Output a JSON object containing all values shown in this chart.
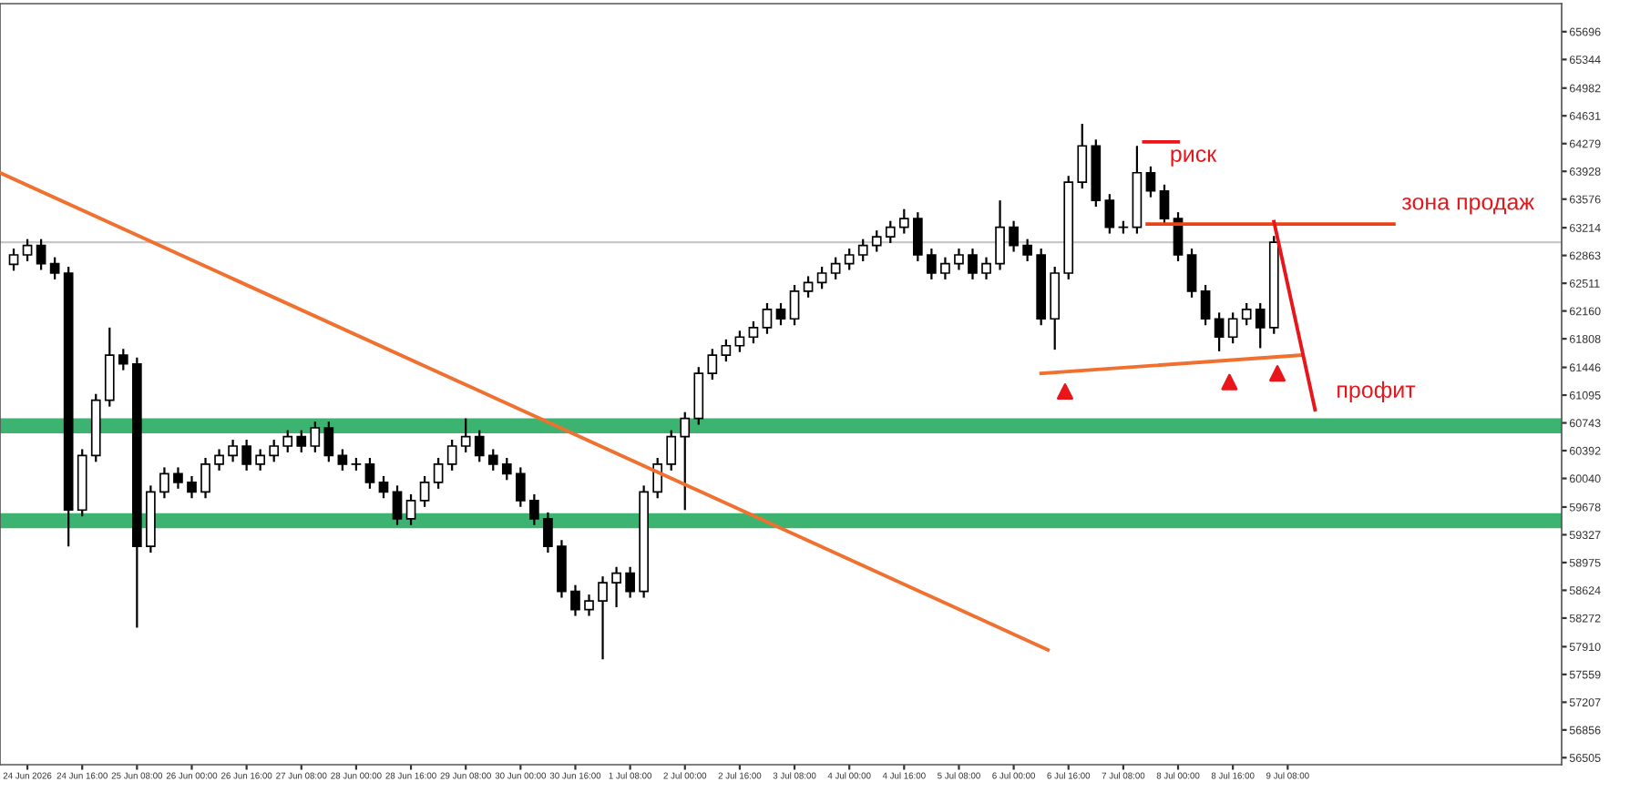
{
  "chart_data": {
    "type": "candlestick",
    "x": [
      "2026-06-23T20:00",
      "2026-06-24T00:00",
      "2026-06-24T04:00",
      "2026-06-24T08:00",
      "2026-06-24T12:00",
      "2026-06-24T16:00",
      "2026-06-24T20:00",
      "2026-06-25T00:00",
      "2026-06-25T04:00",
      "2026-06-25T08:00",
      "2026-06-25T12:00",
      "2026-06-25T16:00",
      "2026-06-25T20:00",
      "2026-06-26T00:00",
      "2026-06-26T04:00",
      "2026-06-26T08:00",
      "2026-06-26T12:00",
      "2026-06-26T16:00",
      "2026-06-26T20:00",
      "2026-06-27T00:00",
      "2026-06-27T04:00",
      "2026-06-27T08:00",
      "2026-06-27T12:00",
      "2026-06-27T16:00",
      "2026-06-27T20:00",
      "2026-06-28T00:00",
      "2026-06-28T04:00",
      "2026-06-28T08:00",
      "2026-06-28T12:00",
      "2026-06-28T16:00",
      "2026-06-28T20:00",
      "2026-06-29T00:00",
      "2026-06-29T04:00",
      "2026-06-29T08:00",
      "2026-06-29T12:00",
      "2026-06-29T16:00",
      "2026-06-29T20:00",
      "2026-06-30T00:00",
      "2026-06-30T04:00",
      "2026-06-30T08:00",
      "2026-06-30T12:00",
      "2026-06-30T16:00",
      "2026-06-30T20:00",
      "2026-07-01T00:00",
      "2026-07-01T04:00",
      "2026-07-01T08:00",
      "2026-07-01T12:00",
      "2026-07-01T16:00",
      "2026-07-01T20:00",
      "2026-07-02T00:00",
      "2026-07-02T04:00",
      "2026-07-02T08:00",
      "2026-07-02T12:00",
      "2026-07-02T16:00",
      "2026-07-02T20:00",
      "2026-07-03T00:00",
      "2026-07-03T04:00",
      "2026-07-03T08:00",
      "2026-07-03T12:00",
      "2026-07-03T16:00",
      "2026-07-03T20:00",
      "2026-07-04T00:00",
      "2026-07-04T04:00",
      "2026-07-04T08:00",
      "2026-07-04T12:00",
      "2026-07-04T16:00",
      "2026-07-04T20:00",
      "2026-07-05T00:00",
      "2026-07-05T04:00",
      "2026-07-05T08:00",
      "2026-07-05T12:00",
      "2026-07-05T16:00",
      "2026-07-05T20:00",
      "2026-07-06T00:00",
      "2026-07-06T04:00",
      "2026-07-06T08:00",
      "2026-07-06T12:00",
      "2026-07-06T16:00",
      "2026-07-06T20:00",
      "2026-07-07T00:00",
      "2026-07-07T04:00",
      "2026-07-07T08:00",
      "2026-07-07T12:00",
      "2026-07-07T16:00",
      "2026-07-07T20:00",
      "2026-07-08T00:00",
      "2026-07-08T04:00",
      "2026-07-08T08:00",
      "2026-07-08T12:00",
      "2026-07-08T16:00",
      "2026-07-08T20:00",
      "2026-07-09T00:00",
      "2026-07-09T04:00"
    ],
    "ohlc": [
      [
        62750,
        62950,
        62670,
        62870
      ],
      [
        62870,
        63070,
        62790,
        62990
      ],
      [
        62990,
        63070,
        62680,
        62760
      ],
      [
        62760,
        62840,
        62560,
        62640
      ],
      [
        62640,
        62720,
        59180,
        59640
      ],
      [
        59640,
        60410,
        59560,
        60330
      ],
      [
        60330,
        61110,
        60250,
        61030
      ],
      [
        61030,
        61950,
        60950,
        61600
      ],
      [
        61600,
        61680,
        61410,
        61490
      ],
      [
        61490,
        61570,
        58150,
        59180
      ],
      [
        59180,
        59950,
        59100,
        59870
      ],
      [
        59870,
        60180,
        59790,
        60100
      ],
      [
        60100,
        60180,
        59910,
        59990
      ],
      [
        59990,
        60070,
        59790,
        59870
      ],
      [
        59870,
        60300,
        59790,
        60220
      ],
      [
        60220,
        60410,
        60140,
        60330
      ],
      [
        60330,
        60530,
        60250,
        60450
      ],
      [
        60450,
        60530,
        60140,
        60220
      ],
      [
        60220,
        60410,
        60140,
        60330
      ],
      [
        60330,
        60530,
        60250,
        60450
      ],
      [
        60450,
        60650,
        60370,
        60570
      ],
      [
        60570,
        60650,
        60370,
        60450
      ],
      [
        60450,
        60760,
        60370,
        60680
      ],
      [
        60680,
        60760,
        60250,
        60330
      ],
      [
        60330,
        60410,
        60140,
        60220
      ],
      [
        60220,
        60300,
        60140,
        60220
      ],
      [
        60220,
        60300,
        59910,
        59990
      ],
      [
        59990,
        60070,
        59790,
        59870
      ],
      [
        59870,
        59950,
        59450,
        59530
      ],
      [
        59530,
        59840,
        59450,
        59760
      ],
      [
        59760,
        60070,
        59680,
        59990
      ],
      [
        59990,
        60300,
        59910,
        60220
      ],
      [
        60220,
        60530,
        60140,
        60450
      ],
      [
        60450,
        60800,
        60370,
        60570
      ],
      [
        60570,
        60650,
        60250,
        60330
      ],
      [
        60330,
        60410,
        60140,
        60220
      ],
      [
        60220,
        60300,
        60020,
        60100
      ],
      [
        60100,
        60180,
        59680,
        59760
      ],
      [
        59760,
        59840,
        59450,
        59530
      ],
      [
        59530,
        59610,
        59100,
        59180
      ],
      [
        59180,
        59260,
        58530,
        58610
      ],
      [
        58610,
        58690,
        58300,
        58380
      ],
      [
        58380,
        58570,
        58300,
        58490
      ],
      [
        58490,
        58800,
        57750,
        58720
      ],
      [
        58720,
        58920,
        58410,
        58840
      ],
      [
        58840,
        58920,
        58530,
        58610
      ],
      [
        58610,
        59950,
        58530,
        59870
      ],
      [
        59870,
        60300,
        59790,
        60220
      ],
      [
        60220,
        60650,
        60140,
        60570
      ],
      [
        60570,
        60880,
        59640,
        60800
      ],
      [
        60800,
        61450,
        60720,
        61370
      ],
      [
        61370,
        61680,
        61290,
        61600
      ],
      [
        61600,
        61800,
        61520,
        61720
      ],
      [
        61720,
        61910,
        61640,
        61830
      ],
      [
        61830,
        62030,
        61750,
        61950
      ],
      [
        61950,
        62260,
        61870,
        62180
      ],
      [
        62180,
        62260,
        61980,
        62060
      ],
      [
        62060,
        62490,
        61980,
        62410
      ],
      [
        62410,
        62600,
        62330,
        62520
      ],
      [
        62520,
        62720,
        62440,
        62640
      ],
      [
        62640,
        62840,
        62560,
        62760
      ],
      [
        62760,
        62950,
        62680,
        62870
      ],
      [
        62870,
        63070,
        62790,
        62990
      ],
      [
        62990,
        63180,
        62910,
        63100
      ],
      [
        63100,
        63300,
        63020,
        63220
      ],
      [
        63220,
        63450,
        63140,
        63330
      ],
      [
        63330,
        63410,
        62790,
        62870
      ],
      [
        62870,
        62950,
        62560,
        62640
      ],
      [
        62640,
        62840,
        62560,
        62760
      ],
      [
        62760,
        62950,
        62680,
        62870
      ],
      [
        62870,
        62950,
        62560,
        62640
      ],
      [
        62640,
        62840,
        62560,
        62760
      ],
      [
        62760,
        63560,
        62680,
        63220
      ],
      [
        63220,
        63300,
        62910,
        62990
      ],
      [
        62990,
        63070,
        62790,
        62870
      ],
      [
        62870,
        62950,
        61980,
        62060
      ],
      [
        62060,
        62720,
        61670,
        62640
      ],
      [
        62640,
        63870,
        62560,
        63790
      ],
      [
        63790,
        64530,
        63710,
        64250
      ],
      [
        64250,
        64330,
        63480,
        63560
      ],
      [
        63560,
        63640,
        63140,
        63220
      ],
      [
        63220,
        63300,
        63140,
        63220
      ],
      [
        63220,
        64250,
        63140,
        63910
      ],
      [
        63910,
        63990,
        63600,
        63680
      ],
      [
        63680,
        63760,
        63250,
        63330
      ],
      [
        63330,
        63410,
        62790,
        62870
      ],
      [
        62870,
        62950,
        62330,
        62410
      ],
      [
        62410,
        62490,
        61980,
        62060
      ],
      [
        62060,
        62140,
        61650,
        61830
      ],
      [
        61830,
        62140,
        61750,
        62060
      ],
      [
        62060,
        62260,
        61980,
        62180
      ],
      [
        62180,
        62260,
        61690,
        61950
      ],
      [
        61950,
        63110,
        61870,
        63030
      ]
    ],
    "series": [
      {
        "type": "line",
        "color": "#f07030",
        "x": [
          "2026-06-23T16:00",
          "2026-07-06T10:00"
        ],
        "values": [
          63910,
          57870
        ]
      },
      {
        "type": "line",
        "color": "#f07030",
        "x": [
          "2026-07-06T08:00",
          "2026-07-09T12:00"
        ],
        "values": [
          61370,
          61600
        ]
      },
      {
        "type": "line",
        "color": "#f04010",
        "x": [
          "2026-07-07T15:00",
          "2026-07-10T15:00"
        ],
        "values": [
          63260,
          63260
        ]
      },
      {
        "type": "line",
        "color": "#e8161b",
        "x": [
          "2026-07-07T14:00",
          "2026-07-08T00:00"
        ],
        "values": [
          64300,
          64300
        ]
      },
      {
        "type": "line",
        "color": "#e8161b",
        "x": [
          "2026-07-09T04:00",
          "2026-07-09T16:00"
        ],
        "values": [
          63290,
          60910
        ]
      },
      {
        "type": "scatter",
        "color": "#e8161b",
        "marker": "triangle",
        "x": [
          "2026-07-06T15:00",
          "2026-07-08T15:00",
          "2026-07-09T05:00"
        ],
        "values": [
          61140,
          61260,
          61370
        ]
      }
    ],
    "bands": [
      {
        "axis": "y",
        "from": 60610,
        "to": 60800,
        "color": "#3cb371"
      },
      {
        "axis": "y",
        "from": 59410,
        "to": 59600,
        "color": "#3cb371"
      }
    ],
    "ref_lines": [
      {
        "axis": "y",
        "value": 63030,
        "color": "#c8c8c8"
      }
    ],
    "annotations": [
      "риск",
      "зона продаж",
      "профит"
    ],
    "xlim": [
      "2026-06-23T16:00",
      "2026-07-12T16:00"
    ],
    "xticks": [
      {
        "value": "2026-06-24T00:00",
        "label": "24 Jun 2026"
      },
      {
        "value": "2026-06-24T16:00",
        "label": "24 Jun 16:00"
      },
      {
        "value": "2026-06-25T08:00",
        "label": "25 Jun 08:00"
      },
      {
        "value": "2026-06-26T00:00",
        "label": "26 Jun 00:00"
      },
      {
        "value": "2026-06-26T16:00",
        "label": "26 Jun 16:00"
      },
      {
        "value": "2026-06-27T08:00",
        "label": "27 Jun 08:00"
      },
      {
        "value": "2026-06-28T00:00",
        "label": "28 Jun 00:00"
      },
      {
        "value": "2026-06-28T16:00",
        "label": "28 Jun 16:00"
      },
      {
        "value": "2026-06-29T08:00",
        "label": "29 Jun 08:00"
      },
      {
        "value": "2026-06-30T00:00",
        "label": "30 Jun 00:00"
      },
      {
        "value": "2026-06-30T16:00",
        "label": "30 Jun 16:00"
      },
      {
        "value": "2026-07-01T08:00",
        "label": "1 Jul 08:00"
      },
      {
        "value": "2026-07-02T00:00",
        "label": "2 Jul 00:00"
      },
      {
        "value": "2026-07-02T16:00",
        "label": "2 Jul 16:00"
      },
      {
        "value": "2026-07-03T08:00",
        "label": "3 Jul 08:00"
      },
      {
        "value": "2026-07-04T00:00",
        "label": "4 Jul 00:00"
      },
      {
        "value": "2026-07-04T16:00",
        "label": "4 Jul 16:00"
      },
      {
        "value": "2026-07-05T08:00",
        "label": "5 Jul 08:00"
      },
      {
        "value": "2026-07-06T00:00",
        "label": "6 Jul 00:00"
      },
      {
        "value": "2026-07-06T16:00",
        "label": "6 Jul 16:00"
      },
      {
        "value": "2026-07-07T08:00",
        "label": "7 Jul 08:00"
      },
      {
        "value": "2026-07-08T00:00",
        "label": "8 Jul 00:00"
      },
      {
        "value": "2026-07-08T16:00",
        "label": "8 Jul 16:00"
      },
      {
        "value": "2026-07-09T08:00",
        "label": "9 Jul 08:00"
      }
    ],
    "ylim": [
      56416,
      66051
    ],
    "yticks": [
      56505,
      56856,
      57207,
      57559,
      57910,
      58272,
      58624,
      58975,
      59327,
      59678,
      60040,
      60392,
      60743,
      61095,
      61446,
      61808,
      62160,
      62511,
      62863,
      63214,
      63576,
      63928,
      64279,
      64631,
      64982,
      65344,
      65696
    ],
    "grid": false,
    "legend": false
  }
}
